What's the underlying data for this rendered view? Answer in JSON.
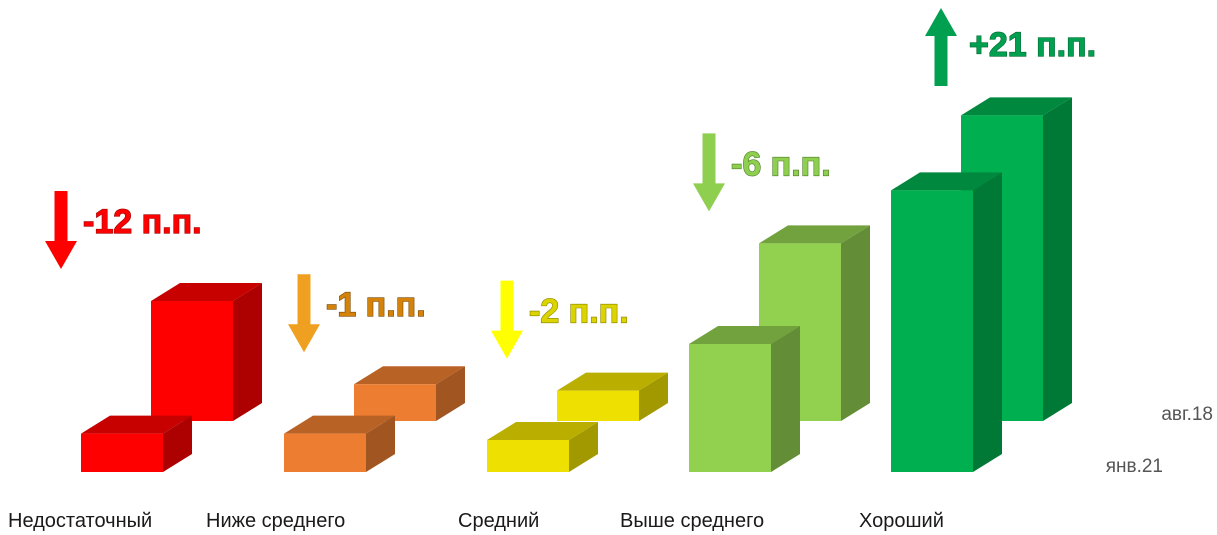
{
  "chart_data": {
    "type": "bar",
    "title": "",
    "xlabel": "",
    "ylabel": "",
    "categories": [
      "Недостаточный",
      "Ниже среднего",
      "Средний",
      "Выше среднего",
      "Хороший"
    ],
    "series": [
      {
        "name": "авг.18",
        "values": [
          25,
          12,
          11,
          34,
          54
        ]
      },
      {
        "name": "янв.21",
        "values": [
          6,
          6,
          5,
          20,
          44
        ]
      }
    ],
    "changes": [
      {
        "category": "Недостаточный",
        "label": "-12 п.п.",
        "direction": "down"
      },
      {
        "category": "Ниже среднего",
        "label": "-1 п.п.",
        "direction": "down"
      },
      {
        "category": "Средний",
        "label": "-2 п.п.",
        "direction": "down"
      },
      {
        "category": "Выше среднего",
        "label": "-6 п.п.",
        "direction": "down"
      },
      {
        "category": "Хороший",
        "label": "+21 п.п.",
        "direction": "up"
      }
    ],
    "colors": {
      "categories": [
        "#ff0000",
        "#ed7d31",
        "#eee000",
        "#92d050",
        "#00b050"
      ],
      "arrows": [
        "#ff0000",
        "#f0a020",
        "#ffff00",
        "#8ecf50",
        "#00a050"
      ],
      "label_fill": [
        "#ff0000",
        "#d4820a",
        "#dcd400",
        "#8ecf50",
        "#00a050"
      ],
      "label_stroke": [
        "#a00000",
        "#7a4a05",
        "#8a8400",
        "#4f7c28",
        "#006830"
      ]
    },
    "grid": false,
    "legend": "right"
  }
}
